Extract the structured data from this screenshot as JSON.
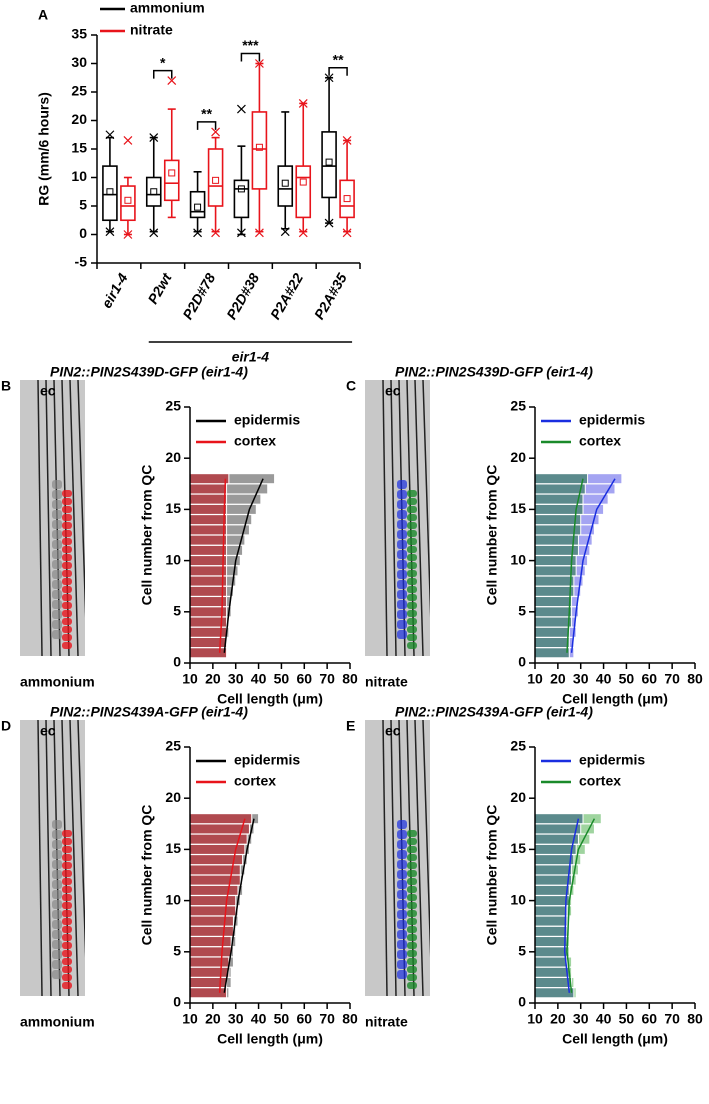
{
  "chart_data": [
    {
      "type": "box",
      "panel": "A",
      "ylabel": "RG (mm/6 hours)",
      "ylim": [
        -5,
        35
      ],
      "yticks": [
        -5,
        0,
        5,
        10,
        15,
        20,
        25,
        30,
        35
      ],
      "categories": [
        "eir1-4",
        "P2wt",
        "P2D#78",
        "P2D#38",
        "P2A#22",
        "P2A#35"
      ],
      "group_label": "eir1-4",
      "series": [
        {
          "name": "ammonium",
          "color": "#000000",
          "boxes": [
            {
              "min": 0.5,
              "q1": 2.5,
              "median": 7,
              "q3": 12,
              "max": 17,
              "mean": 7.5,
              "outliers": [
                17.5,
                0.5
              ]
            },
            {
              "min": 0.5,
              "q1": 5,
              "median": 7,
              "q3": 10,
              "max": 17,
              "mean": 7.5,
              "outliers": [
                17,
                0.3
              ]
            },
            {
              "min": 0.5,
              "q1": 3,
              "median": 4,
              "q3": 7.5,
              "max": 11,
              "mean": 4.8,
              "outliers": [
                0.3
              ]
            },
            {
              "min": 0,
              "q1": 3,
              "median": 8,
              "q3": 9.5,
              "max": 15.5,
              "mean": 8,
              "outliers": [
                22,
                0.3
              ]
            },
            {
              "min": 1,
              "q1": 5,
              "median": 8,
              "q3": 12,
              "max": 21.5,
              "mean": 9,
              "outliers": [
                0.5
              ]
            },
            {
              "min": 2,
              "q1": 6.5,
              "median": 12,
              "q3": 18,
              "max": 27.5,
              "mean": 12.7,
              "outliers": [
                27.5,
                2
              ]
            }
          ]
        },
        {
          "name": "nitrate",
          "color": "#e8141b",
          "boxes": [
            {
              "min": 0,
              "q1": 2.5,
              "median": 5,
              "q3": 8.5,
              "max": 10,
              "mean": 6,
              "outliers": [
                16.5,
                0
              ]
            },
            {
              "min": 3,
              "q1": 6,
              "median": 9,
              "q3": 13,
              "max": 22,
              "mean": 10.8,
              "outliers": [
                27
              ]
            },
            {
              "min": 0.5,
              "q1": 5,
              "median": 8.5,
              "q3": 15,
              "max": 17,
              "mean": 9.5,
              "outliers": [
                18,
                0.3
              ]
            },
            {
              "min": 0.5,
              "q1": 8,
              "median": 15,
              "q3": 21.5,
              "max": 30,
              "mean": 15.3,
              "outliers": [
                30,
                0.3
              ]
            },
            {
              "min": 0.5,
              "q1": 3,
              "median": 10,
              "q3": 12,
              "max": 23,
              "mean": 9.2,
              "outliers": [
                23,
                0.3
              ]
            },
            {
              "min": 0.5,
              "q1": 3,
              "median": 5,
              "q3": 9.5,
              "max": 16.5,
              "mean": 6.3,
              "outliers": [
                16.5,
                0.3
              ]
            }
          ]
        }
      ],
      "significance": [
        {
          "category": 1,
          "label": "*"
        },
        {
          "category": 2,
          "label": "**"
        },
        {
          "category": 3,
          "label": "***"
        },
        {
          "category": 5,
          "label": "**"
        }
      ]
    },
    {
      "type": "hbar",
      "panel": "B",
      "title": "PIN2::PIN2S439D-GFP (eir1-4)",
      "condition": "ammonium",
      "micrograph_label": "ec",
      "ylabel": "Cell number from QC",
      "xlabel": "Cell length (μm)",
      "xlim": [
        10,
        80
      ],
      "xticks": [
        10,
        20,
        30,
        40,
        50,
        60,
        70,
        80
      ],
      "ylim": [
        0,
        25
      ],
      "yticks": [
        0,
        5,
        10,
        15,
        20,
        25
      ],
      "y": [
        1,
        2,
        3,
        4,
        5,
        6,
        7,
        8,
        9,
        10,
        11,
        12,
        13,
        14,
        15,
        16,
        17,
        18
      ],
      "fit_y": [
        1,
        5,
        10,
        15,
        18
      ],
      "series": [
        {
          "name": "epidermis",
          "color": "#000000",
          "bar_color": "#9a9a9a",
          "values": [
            26,
            26,
            27,
            27,
            28,
            28,
            29,
            30,
            31,
            32,
            33,
            34,
            36,
            37,
            39,
            41,
            44,
            47
          ],
          "fit": [
            25,
            27,
            30,
            36,
            42
          ]
        },
        {
          "name": "cortex",
          "color": "#e8141b",
          "bar_color": "#b04a4f",
          "values": [
            26,
            26,
            26,
            26,
            26,
            26,
            26,
            26,
            26,
            26,
            26,
            26,
            26,
            26,
            26,
            26,
            26,
            27
          ],
          "fit": [
            23,
            24,
            24.5,
            25,
            25.5
          ]
        }
      ]
    },
    {
      "type": "hbar",
      "panel": "C",
      "title": "PIN2::PIN2S439D-GFP (eir1-4)",
      "condition": "nitrate",
      "micrograph_label": "ec",
      "ylabel": "Cell number from QC",
      "xlabel": "Cell length (μm)",
      "xlim": [
        10,
        80
      ],
      "xticks": [
        10,
        20,
        30,
        40,
        50,
        60,
        70,
        80
      ],
      "ylim": [
        0,
        25
      ],
      "yticks": [
        0,
        5,
        10,
        15,
        20,
        25
      ],
      "y": [
        1,
        2,
        3,
        4,
        5,
        6,
        7,
        8,
        9,
        10,
        11,
        12,
        13,
        14,
        15,
        16,
        17,
        18
      ],
      "fit_y": [
        1,
        5,
        10,
        15,
        18
      ],
      "series": [
        {
          "name": "epidermis",
          "color": "#1a2ee0",
          "bar_color": "#a4a4f2",
          "values": [
            27,
            27,
            28,
            28,
            29,
            29,
            30,
            31,
            32,
            33,
            34,
            35,
            36,
            38,
            40,
            42,
            45,
            48
          ],
          "fit": [
            26,
            28,
            31,
            37,
            45
          ]
        },
        {
          "name": "cortex",
          "color": "#1a8a2a",
          "bar_color": "#5b8a8c",
          "values": [
            25,
            25,
            25,
            26,
            26,
            26,
            27,
            27,
            28,
            28,
            29,
            29,
            30,
            30,
            31,
            31,
            32,
            33
          ],
          "fit": [
            24,
            25,
            26,
            28,
            31
          ]
        }
      ]
    },
    {
      "type": "hbar",
      "panel": "D",
      "title": "PIN2::PIN2S439A-GFP (eir1-4)",
      "condition": "ammonium",
      "micrograph_label": "ec",
      "ylabel": "Cell number from QC",
      "xlabel": "Cell length (μm)",
      "xlim": [
        10,
        80
      ],
      "xticks": [
        10,
        20,
        30,
        40,
        50,
        60,
        70,
        80
      ],
      "ylim": [
        0,
        25
      ],
      "yticks": [
        0,
        5,
        10,
        15,
        20,
        25
      ],
      "y": [
        1,
        2,
        3,
        4,
        5,
        6,
        7,
        8,
        9,
        10,
        11,
        12,
        13,
        14,
        15,
        16,
        17,
        18
      ],
      "fit_y": [
        1,
        5,
        10,
        15,
        18
      ],
      "series": [
        {
          "name": "epidermis",
          "color": "#000000",
          "bar_color": "#9a9a9a",
          "values": [
            27,
            28,
            28,
            29,
            29,
            30,
            30,
            31,
            31,
            32,
            33,
            33,
            34,
            35,
            36,
            37,
            38,
            40
          ],
          "fit": [
            25,
            28,
            31,
            35,
            38
          ]
        },
        {
          "name": "cortex",
          "color": "#e8141b",
          "bar_color": "#b04a4f",
          "values": [
            26,
            26,
            27,
            27,
            28,
            28,
            29,
            29,
            30,
            30,
            31,
            32,
            32,
            33,
            34,
            35,
            36,
            37
          ],
          "fit": [
            23,
            24,
            26,
            30,
            34
          ]
        }
      ]
    },
    {
      "type": "hbar",
      "panel": "E",
      "title": "PIN2::PIN2S439A-GFP (eir1-4)",
      "condition": "nitrate",
      "micrograph_label": "ec",
      "ylabel": "Cell number from QC",
      "xlabel": "Cell length (μm)",
      "xlim": [
        10,
        80
      ],
      "xticks": [
        10,
        20,
        30,
        40,
        50,
        60,
        70,
        80
      ],
      "ylim": [
        0,
        25
      ],
      "yticks": [
        0,
        5,
        10,
        15,
        20,
        25
      ],
      "y": [
        1,
        2,
        3,
        4,
        5,
        6,
        7,
        8,
        9,
        10,
        11,
        12,
        13,
        14,
        15,
        16,
        17,
        18
      ],
      "fit_y": [
        1,
        5,
        10,
        15,
        18
      ],
      "series": [
        {
          "name": "epidermis",
          "color": "#1a2ee0",
          "bar_color": "#5b8a8c",
          "values": [
            27,
            26,
            25,
            24,
            24,
            24,
            24,
            24,
            24,
            25,
            25,
            26,
            26,
            27,
            28,
            29,
            30,
            31
          ],
          "fit": [
            25,
            23,
            23.5,
            26,
            29
          ]
        },
        {
          "name": "cortex",
          "color": "#1a8a2a",
          "bar_color": "#9fd49f",
          "values": [
            28,
            27,
            26,
            26,
            25,
            25,
            25,
            25,
            26,
            26,
            27,
            28,
            29,
            30,
            32,
            34,
            36,
            39
          ],
          "fit": [
            26,
            24,
            25,
            29,
            36
          ]
        }
      ]
    }
  ]
}
